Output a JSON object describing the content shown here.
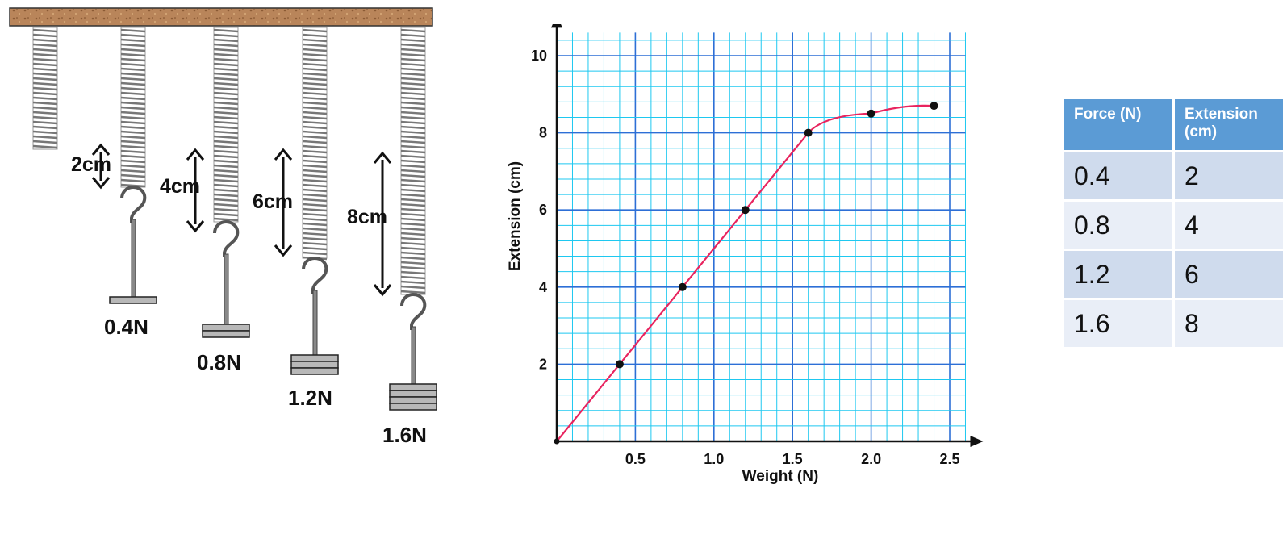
{
  "springs": [
    {
      "extension_label": "",
      "weight_label": ""
    },
    {
      "extension_label": "2cm",
      "weight_label": "0.4N"
    },
    {
      "extension_label": "4cm",
      "weight_label": "0.8N"
    },
    {
      "extension_label": "6cm",
      "weight_label": "1.2N"
    },
    {
      "extension_label": "8cm",
      "weight_label": "1.6N"
    }
  ],
  "chart_data": {
    "type": "line",
    "xlabel": "Weight (N)",
    "ylabel": "Extension (cm)",
    "xlim": [
      0,
      2.6
    ],
    "ylim": [
      0,
      10.6
    ],
    "x_ticks": [
      "0.5",
      "1.0",
      "1.5",
      "2.0",
      "2.5"
    ],
    "y_ticks": [
      "2",
      "4",
      "6",
      "8",
      "10"
    ],
    "grid": true,
    "line_color": "#e8245f",
    "grid_color": "#1ec8f0",
    "series": [
      {
        "x": [
          0,
          0.4,
          0.8,
          1.2,
          1.6,
          2.0,
          2.4
        ],
        "y": [
          0,
          2,
          4,
          6,
          8,
          8.5,
          8.7
        ]
      }
    ]
  },
  "table": {
    "headers": [
      "Force (N)",
      "Extension (cm)"
    ],
    "rows": [
      [
        "0.4",
        "2"
      ],
      [
        "0.8",
        "4"
      ],
      [
        "1.2",
        "6"
      ],
      [
        "1.6",
        "8"
      ]
    ]
  },
  "colors": {
    "header_bg": "#5b9bd5",
    "row_odd": "#cfdbed",
    "row_even": "#e9eef7",
    "wood": "#b9855a"
  }
}
